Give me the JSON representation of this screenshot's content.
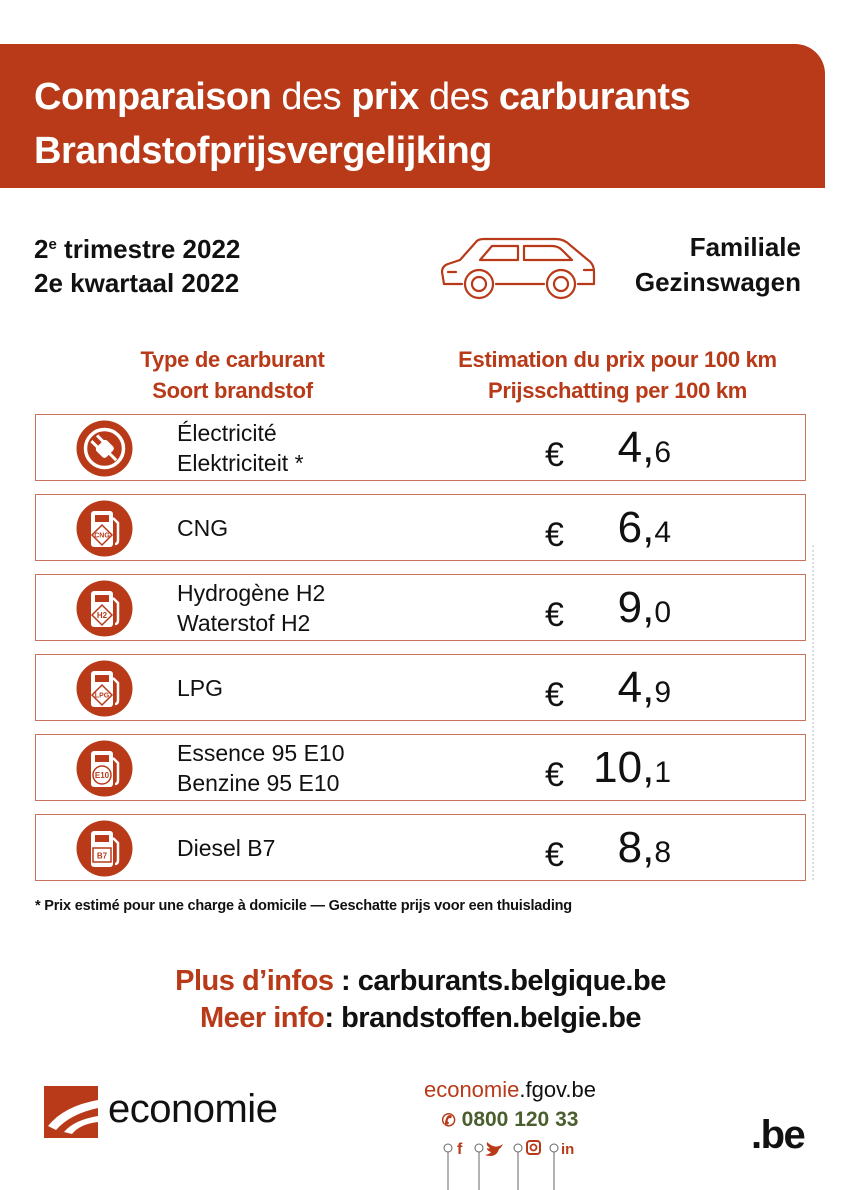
{
  "header": {
    "title_fr": [
      {
        "text": "Comparaison",
        "bold": true
      },
      {
        "text": " des ",
        "bold": false
      },
      {
        "text": "prix",
        "bold": true
      },
      {
        "text": " des ",
        "bold": false
      },
      {
        "text": "carburants",
        "bold": true
      }
    ],
    "title_nl": "Brandstofprijsvergelijking"
  },
  "period": {
    "fr_num": "2",
    "fr_sup": "e",
    "fr_rest": " trimestre 2022",
    "nl": "2e kwartaal 2022"
  },
  "vehicle": {
    "icon": "station-wagon-car-icon",
    "fr": "Familiale",
    "nl": "Gezinswagen"
  },
  "columns": {
    "left_fr": "Type de carburant",
    "left_nl": "Soort brandstof",
    "right_fr": "Estimation du prix pour 100 km",
    "right_nl": "Prijsschatting per 100 km"
  },
  "currency": "€",
  "fuels": [
    {
      "icon": "electric-plug-icon",
      "badge": "",
      "line1": "Électricité",
      "line2": "Elektriciteit *",
      "price_int": "4,",
      "price_dec": "6"
    },
    {
      "icon": "fuel-pump-icon",
      "badge": "CNG",
      "line1": "CNG",
      "line2": "",
      "price_int": "6,",
      "price_dec": "4"
    },
    {
      "icon": "fuel-pump-icon",
      "badge": "H2",
      "line1": "Hydrogène H2",
      "line2": "Waterstof H2",
      "price_int": "9,",
      "price_dec": "0"
    },
    {
      "icon": "fuel-pump-icon",
      "badge": "LPG",
      "line1": "LPG",
      "line2": "",
      "price_int": "4,",
      "price_dec": "9"
    },
    {
      "icon": "fuel-pump-icon",
      "badge": "E10",
      "line1": "Essence 95 E10",
      "line2": "Benzine 95 E10",
      "price_int": "10,",
      "price_dec": "1"
    },
    {
      "icon": "fuel-pump-icon",
      "badge": "B7",
      "line1": "Diesel B7",
      "line2": "",
      "price_int": "8,",
      "price_dec": "8"
    }
  ],
  "footnote": "* Prix estimé pour une charge à domicile — Geschatte prijs voor een thuislading",
  "more_info": {
    "fr_label": "Plus d’infos",
    "fr_sep": " : ",
    "fr_url": "carburants.belgique.be",
    "nl_label": "Meer info",
    "nl_sep": ": ",
    "nl_url": "brandstoffen.belgie.be"
  },
  "footer": {
    "logo_text": "economie",
    "site_prefix": "economie",
    "site_suffix": ".fgov.be",
    "phone": "0800 120 33",
    "social": [
      "facebook-icon",
      "twitter-icon",
      "instagram-icon",
      "linkedin-icon"
    ],
    "be_mark": ".be"
  },
  "colors": {
    "brand_red": "#b83a18",
    "phone_green": "#4a5e2e",
    "row_border": "#c9735c"
  }
}
